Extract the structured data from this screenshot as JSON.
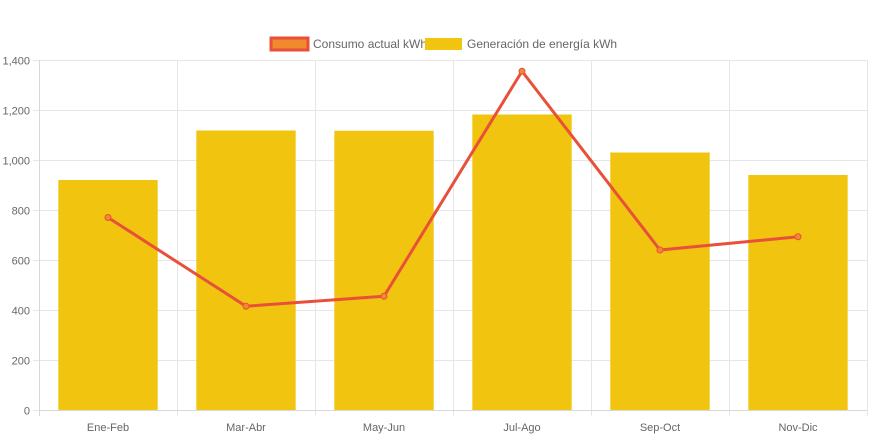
{
  "chart_data": {
    "type": "bar",
    "categories": [
      "Ene-Feb",
      "Mar-Abr",
      "May-Jun",
      "Jul-Ago",
      "Sep-Oct",
      "Nov-Dic"
    ],
    "series": [
      {
        "name": "Consumo actual kWh",
        "type": "line",
        "values": [
          770,
          415,
          455,
          1355,
          640,
          693
        ],
        "color": "#E8503A",
        "fill": "#F08A2C"
      },
      {
        "name": "Generación de energía kWh",
        "type": "bar",
        "values": [
          920,
          1118,
          1117,
          1182,
          1030,
          940
        ],
        "color": "#F1C40F"
      }
    ],
    "ylim": [
      0,
      1400
    ],
    "yticks": [
      0,
      200,
      400,
      600,
      800,
      1000,
      1200,
      1400
    ],
    "ytick_labels": [
      "0",
      "200",
      "400",
      "600",
      "800",
      "1,000",
      "1,200",
      "1,400"
    ],
    "grid": true,
    "legend": "top-center",
    "title": "",
    "xlabel": "",
    "ylabel": ""
  }
}
